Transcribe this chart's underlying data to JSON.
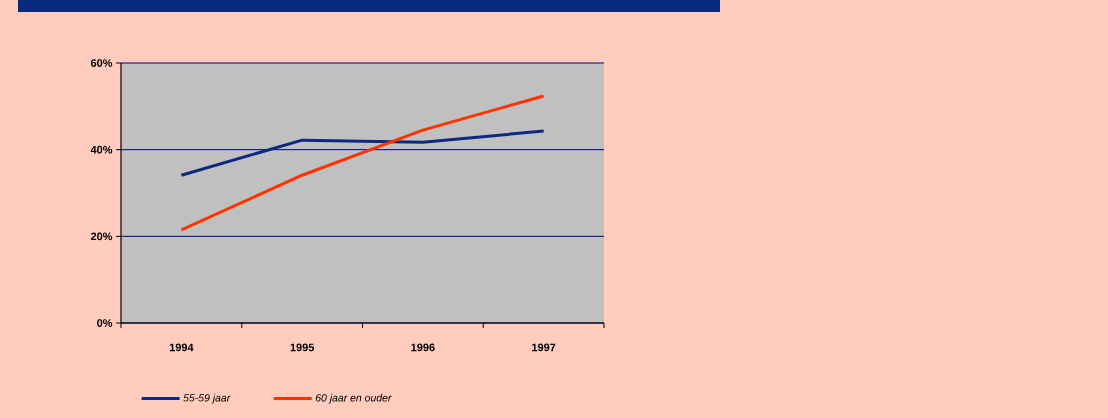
{
  "chart_data": {
    "type": "line",
    "categories": [
      "1994",
      "1995",
      "1996",
      "1997"
    ],
    "series": [
      {
        "name": "55-59 jaar",
        "color": "#0a2a80",
        "values": [
          34.1,
          42.2,
          41.7,
          44.3
        ]
      },
      {
        "name": "60 jaar en ouder",
        "color": "#ff3300",
        "values": [
          21.5,
          34.1,
          44.5,
          52.4
        ]
      }
    ],
    "ylim": [
      0,
      60
    ],
    "yticks": [
      {
        "value": 0,
        "label": "0%"
      },
      {
        "value": 20,
        "label": "20%"
      },
      {
        "value": 40,
        "label": "40%"
      },
      {
        "value": 60,
        "label": "60%"
      }
    ],
    "grid": "y",
    "legend": "bottom left",
    "marker": "none",
    "line_style": "solid"
  }
}
